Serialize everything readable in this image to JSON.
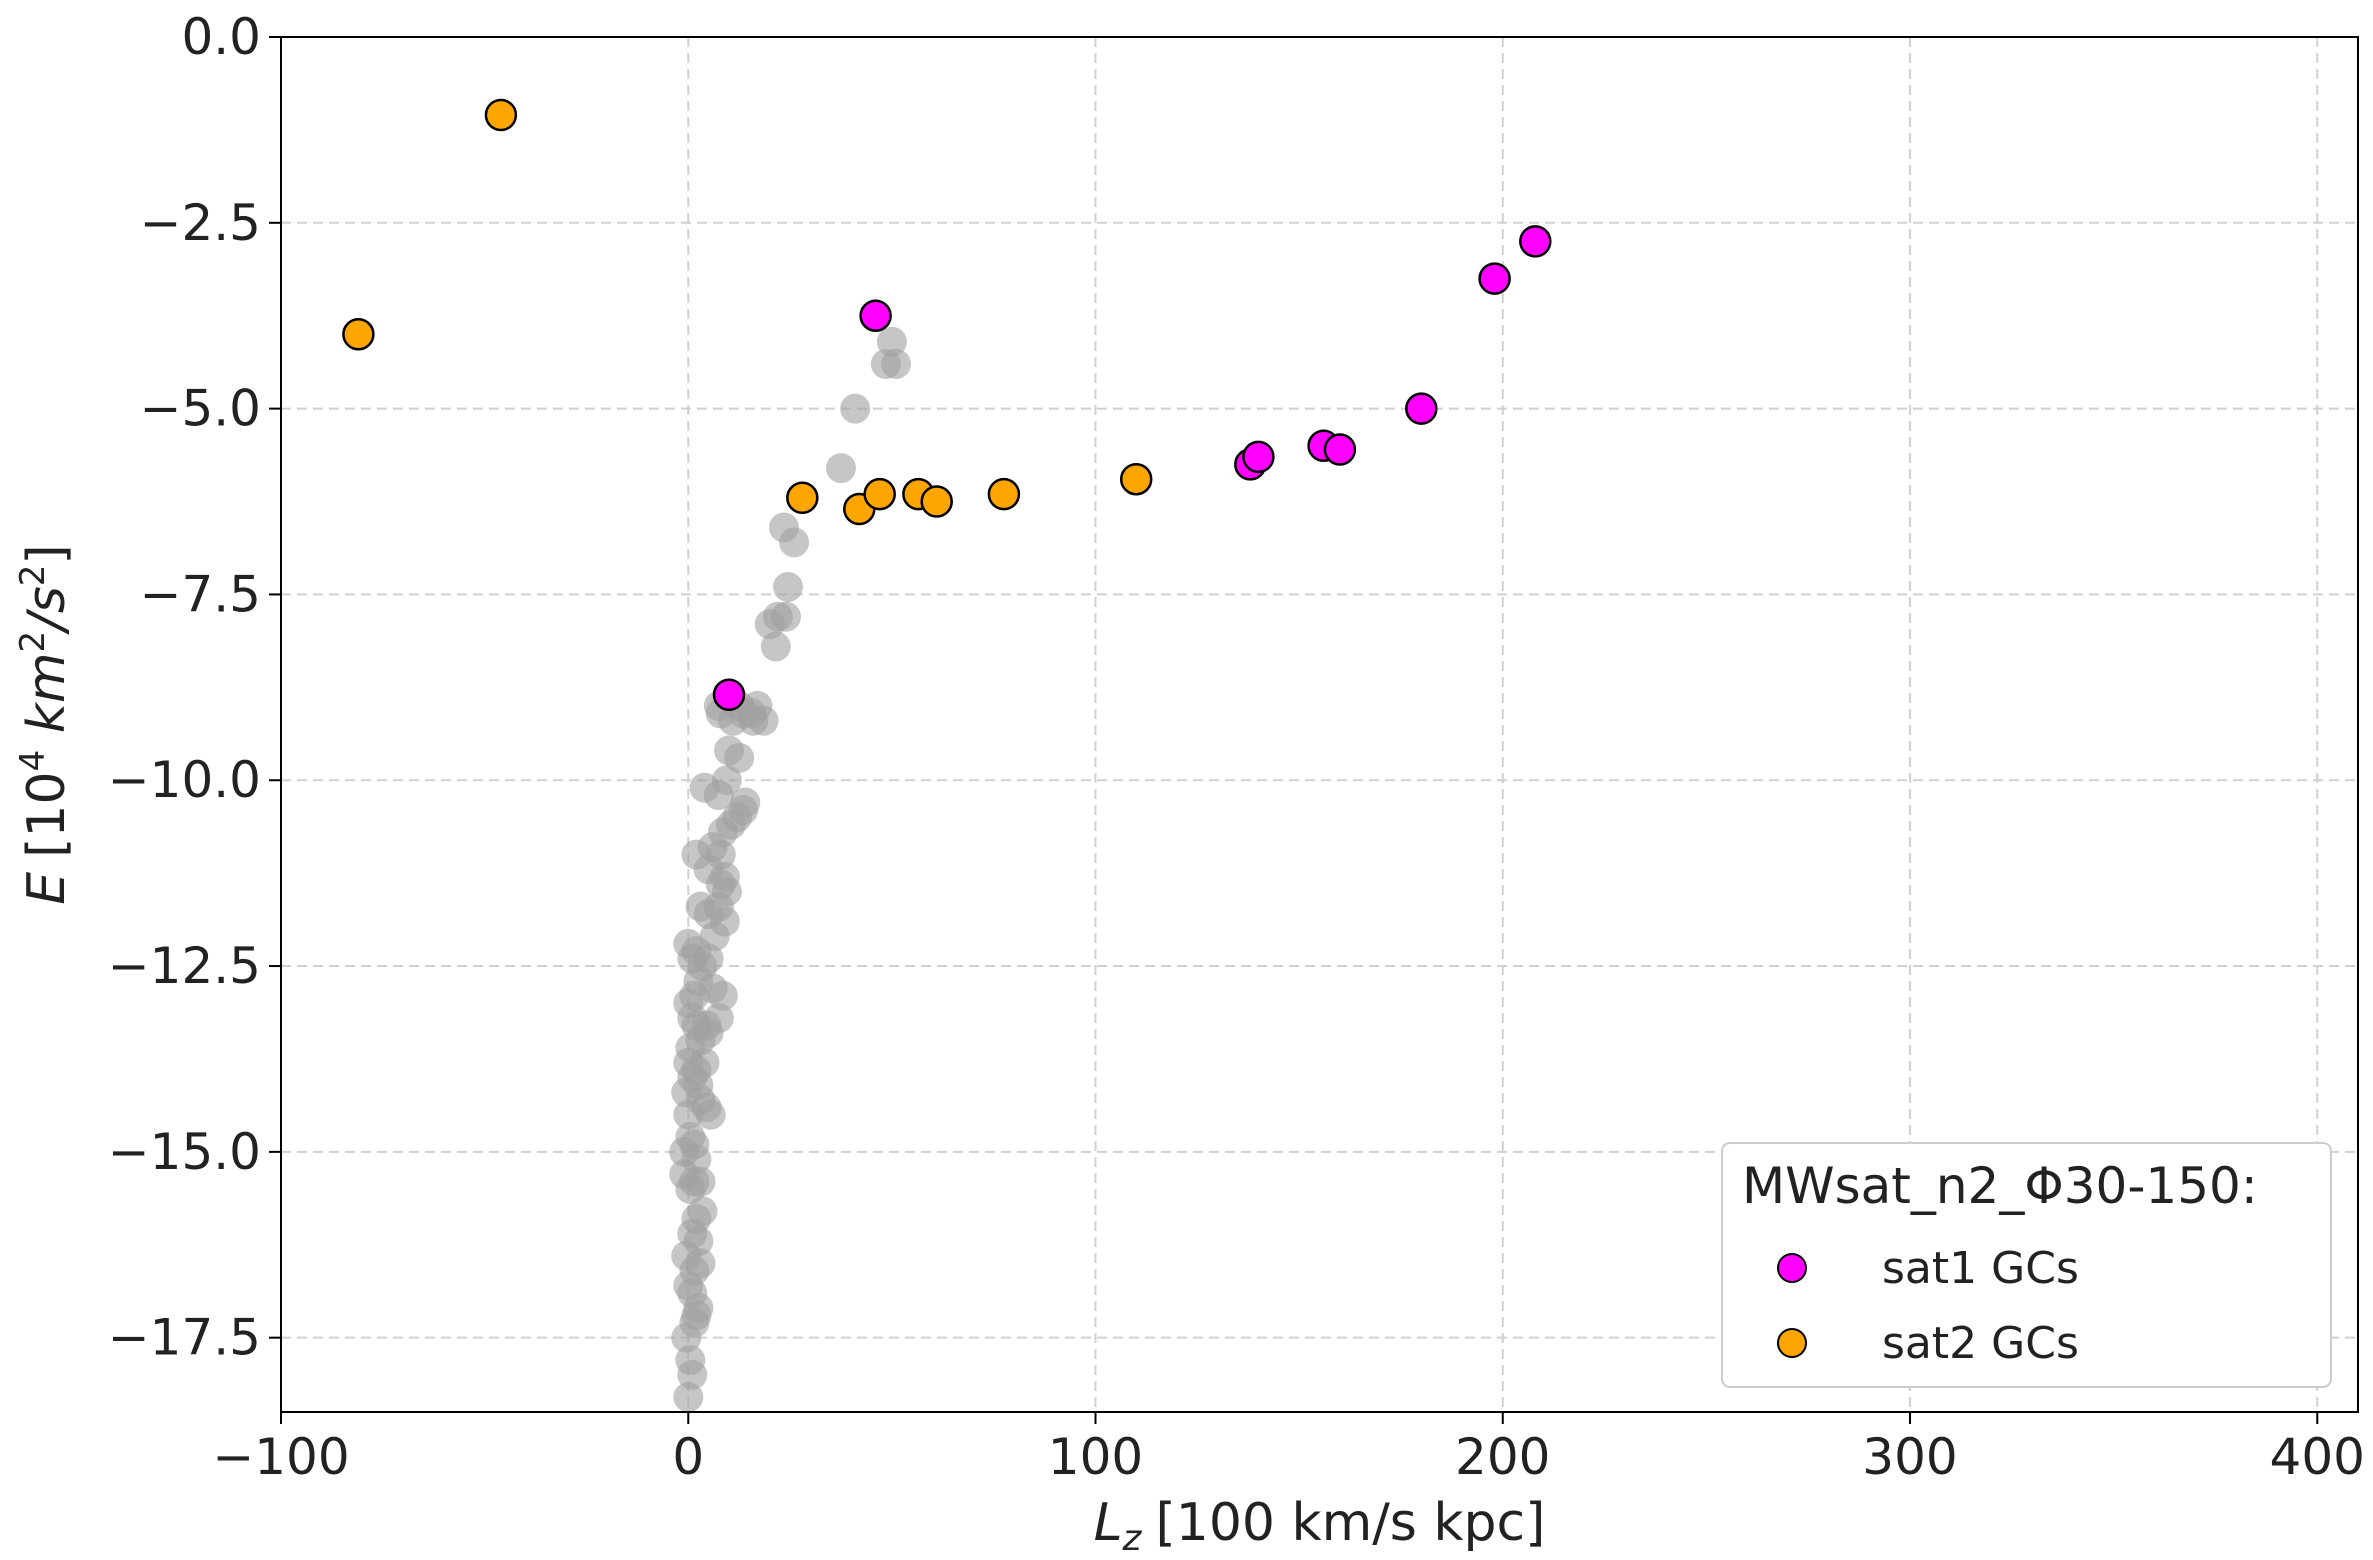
{
  "chart_data": {
    "type": "scatter",
    "xlabel": {
      "var": "L",
      "sub": "z",
      "units": "[100 km/s kpc]"
    },
    "ylabel": {
      "var": "E",
      "units_prefix": "[10",
      "exp1": "4",
      "units_mid": " km",
      "exp2": "2",
      "units_mid2": "/s",
      "exp3": "2",
      "units_suffix": "]"
    },
    "xlim": [
      -100,
      410
    ],
    "ylim": [
      -18.5,
      0.0
    ],
    "xticks": [
      -100,
      0,
      100,
      200,
      300,
      400
    ],
    "xtick_labels": [
      "−100",
      "0",
      "100",
      "200",
      "300",
      "400"
    ],
    "yticks": [
      0.0,
      -2.5,
      -5.0,
      -7.5,
      -10.0,
      -12.5,
      -15.0,
      -17.5
    ],
    "ytick_labels": [
      "0.0",
      "−2.5",
      "−5.0",
      "−7.5",
      "−10.0",
      "−12.5",
      "−15.0",
      "−17.5"
    ],
    "grid": true,
    "legend": {
      "title": "MWsat_n2_Φ30-150:",
      "position": "bottom-right",
      "entries": [
        "sat1 GCs",
        "sat2 GCs"
      ]
    },
    "series": [
      {
        "name": "background",
        "color": "#a0a0a0",
        "points": [
          [
            0.0,
            -18.3
          ],
          [
            1.0,
            -18.0
          ],
          [
            0.5,
            -17.8
          ],
          [
            -0.5,
            -17.5
          ],
          [
            2.0,
            -17.2
          ],
          [
            1.5,
            -17.3
          ],
          [
            2.5,
            -17.1
          ],
          [
            0.0,
            -16.8
          ],
          [
            1.0,
            -16.9
          ],
          [
            1.5,
            -16.6
          ],
          [
            3.0,
            -16.5
          ],
          [
            -0.5,
            -16.4
          ],
          [
            2.5,
            -16.2
          ],
          [
            1.0,
            -16.1
          ],
          [
            2.0,
            -15.9
          ],
          [
            3.5,
            -15.8
          ],
          [
            0.5,
            -15.5
          ],
          [
            -1.0,
            -15.3
          ],
          [
            1.5,
            -15.4
          ],
          [
            3.0,
            -15.4
          ],
          [
            -1.0,
            -15.0
          ],
          [
            2.0,
            -15.1
          ],
          [
            0.5,
            -14.8
          ],
          [
            1.5,
            -14.9
          ],
          [
            0.0,
            -14.5
          ],
          [
            3.0,
            -14.3
          ],
          [
            4.5,
            -14.4
          ],
          [
            5.5,
            -14.5
          ],
          [
            -0.5,
            -14.2
          ],
          [
            1.0,
            -14.0
          ],
          [
            2.5,
            -14.1
          ],
          [
            0.0,
            -13.8
          ],
          [
            2.0,
            -13.9
          ],
          [
            4.0,
            -13.8
          ],
          [
            0.5,
            -13.6
          ],
          [
            3.0,
            -13.5
          ],
          [
            1.0,
            -13.2
          ],
          [
            2.0,
            -13.3
          ],
          [
            0.0,
            -13.0
          ],
          [
            4.5,
            -13.3
          ],
          [
            5.0,
            -13.4
          ],
          [
            7.5,
            -13.2
          ],
          [
            1.5,
            -12.9
          ],
          [
            2.5,
            -12.7
          ],
          [
            6.0,
            -12.8
          ],
          [
            8.5,
            -12.9
          ],
          [
            1.0,
            -12.4
          ],
          [
            3.5,
            -12.5
          ],
          [
            5.0,
            -12.4
          ],
          [
            0.0,
            -12.2
          ],
          [
            2.0,
            -12.3
          ],
          [
            6.5,
            -12.1
          ],
          [
            5.0,
            -11.8
          ],
          [
            7.5,
            -11.7
          ],
          [
            9.0,
            -11.9
          ],
          [
            3.0,
            -11.7
          ],
          [
            9.5,
            -11.5
          ],
          [
            8.0,
            -11.4
          ],
          [
            9.0,
            -11.3
          ],
          [
            5.0,
            -11.2
          ],
          [
            2.0,
            -11.0
          ],
          [
            8.0,
            -11.0
          ],
          [
            6.0,
            -10.9
          ],
          [
            8.5,
            -10.7
          ],
          [
            10.5,
            -10.6
          ],
          [
            12.0,
            -10.5
          ],
          [
            14.0,
            -10.3
          ],
          [
            13.5,
            -10.4
          ],
          [
            4.0,
            -10.1
          ],
          [
            7.5,
            -10.2
          ],
          [
            9.5,
            -10.0
          ],
          [
            12.5,
            -9.7
          ],
          [
            10.0,
            -9.6
          ],
          [
            11.0,
            -9.2
          ],
          [
            8.0,
            -9.1
          ],
          [
            7.5,
            -9.0
          ],
          [
            12.5,
            -9.0
          ],
          [
            13.5,
            -9.1
          ],
          [
            15.5,
            -9.1
          ],
          [
            17.0,
            -9.0
          ],
          [
            16.0,
            -9.2
          ],
          [
            18.5,
            -9.2
          ],
          [
            21.5,
            -8.2
          ],
          [
            20.0,
            -7.9
          ],
          [
            22.0,
            -7.8
          ],
          [
            24.0,
            -7.8
          ],
          [
            24.5,
            -7.4
          ],
          [
            26.0,
            -6.8
          ],
          [
            23.5,
            -6.6
          ],
          [
            37.5,
            -5.8
          ],
          [
            41.0,
            -5.0
          ],
          [
            48.5,
            -4.4
          ],
          [
            51.0,
            -4.4
          ],
          [
            50.0,
            -4.1
          ]
        ]
      },
      {
        "name": "sat1 GCs",
        "color": "#ff00ff",
        "points": [
          [
            46.0,
            -3.75
          ],
          [
            10.0,
            -8.85
          ],
          [
            138.0,
            -5.75
          ],
          [
            140.0,
            -5.65
          ],
          [
            156.0,
            -5.5
          ],
          [
            160.0,
            -5.55
          ],
          [
            180.0,
            -5.0
          ],
          [
            198.0,
            -3.25
          ],
          [
            208.0,
            -2.75
          ]
        ]
      },
      {
        "name": "sat2 GCs",
        "color": "#ffa500",
        "points": [
          [
            -46.0,
            -1.05
          ],
          [
            -81.0,
            -4.0
          ],
          [
            28.0,
            -6.2
          ],
          [
            42.0,
            -6.35
          ],
          [
            47.0,
            -6.15
          ],
          [
            56.5,
            -6.15
          ],
          [
            61.0,
            -6.25
          ],
          [
            77.5,
            -6.15
          ],
          [
            110.0,
            -5.95
          ]
        ]
      }
    ]
  }
}
